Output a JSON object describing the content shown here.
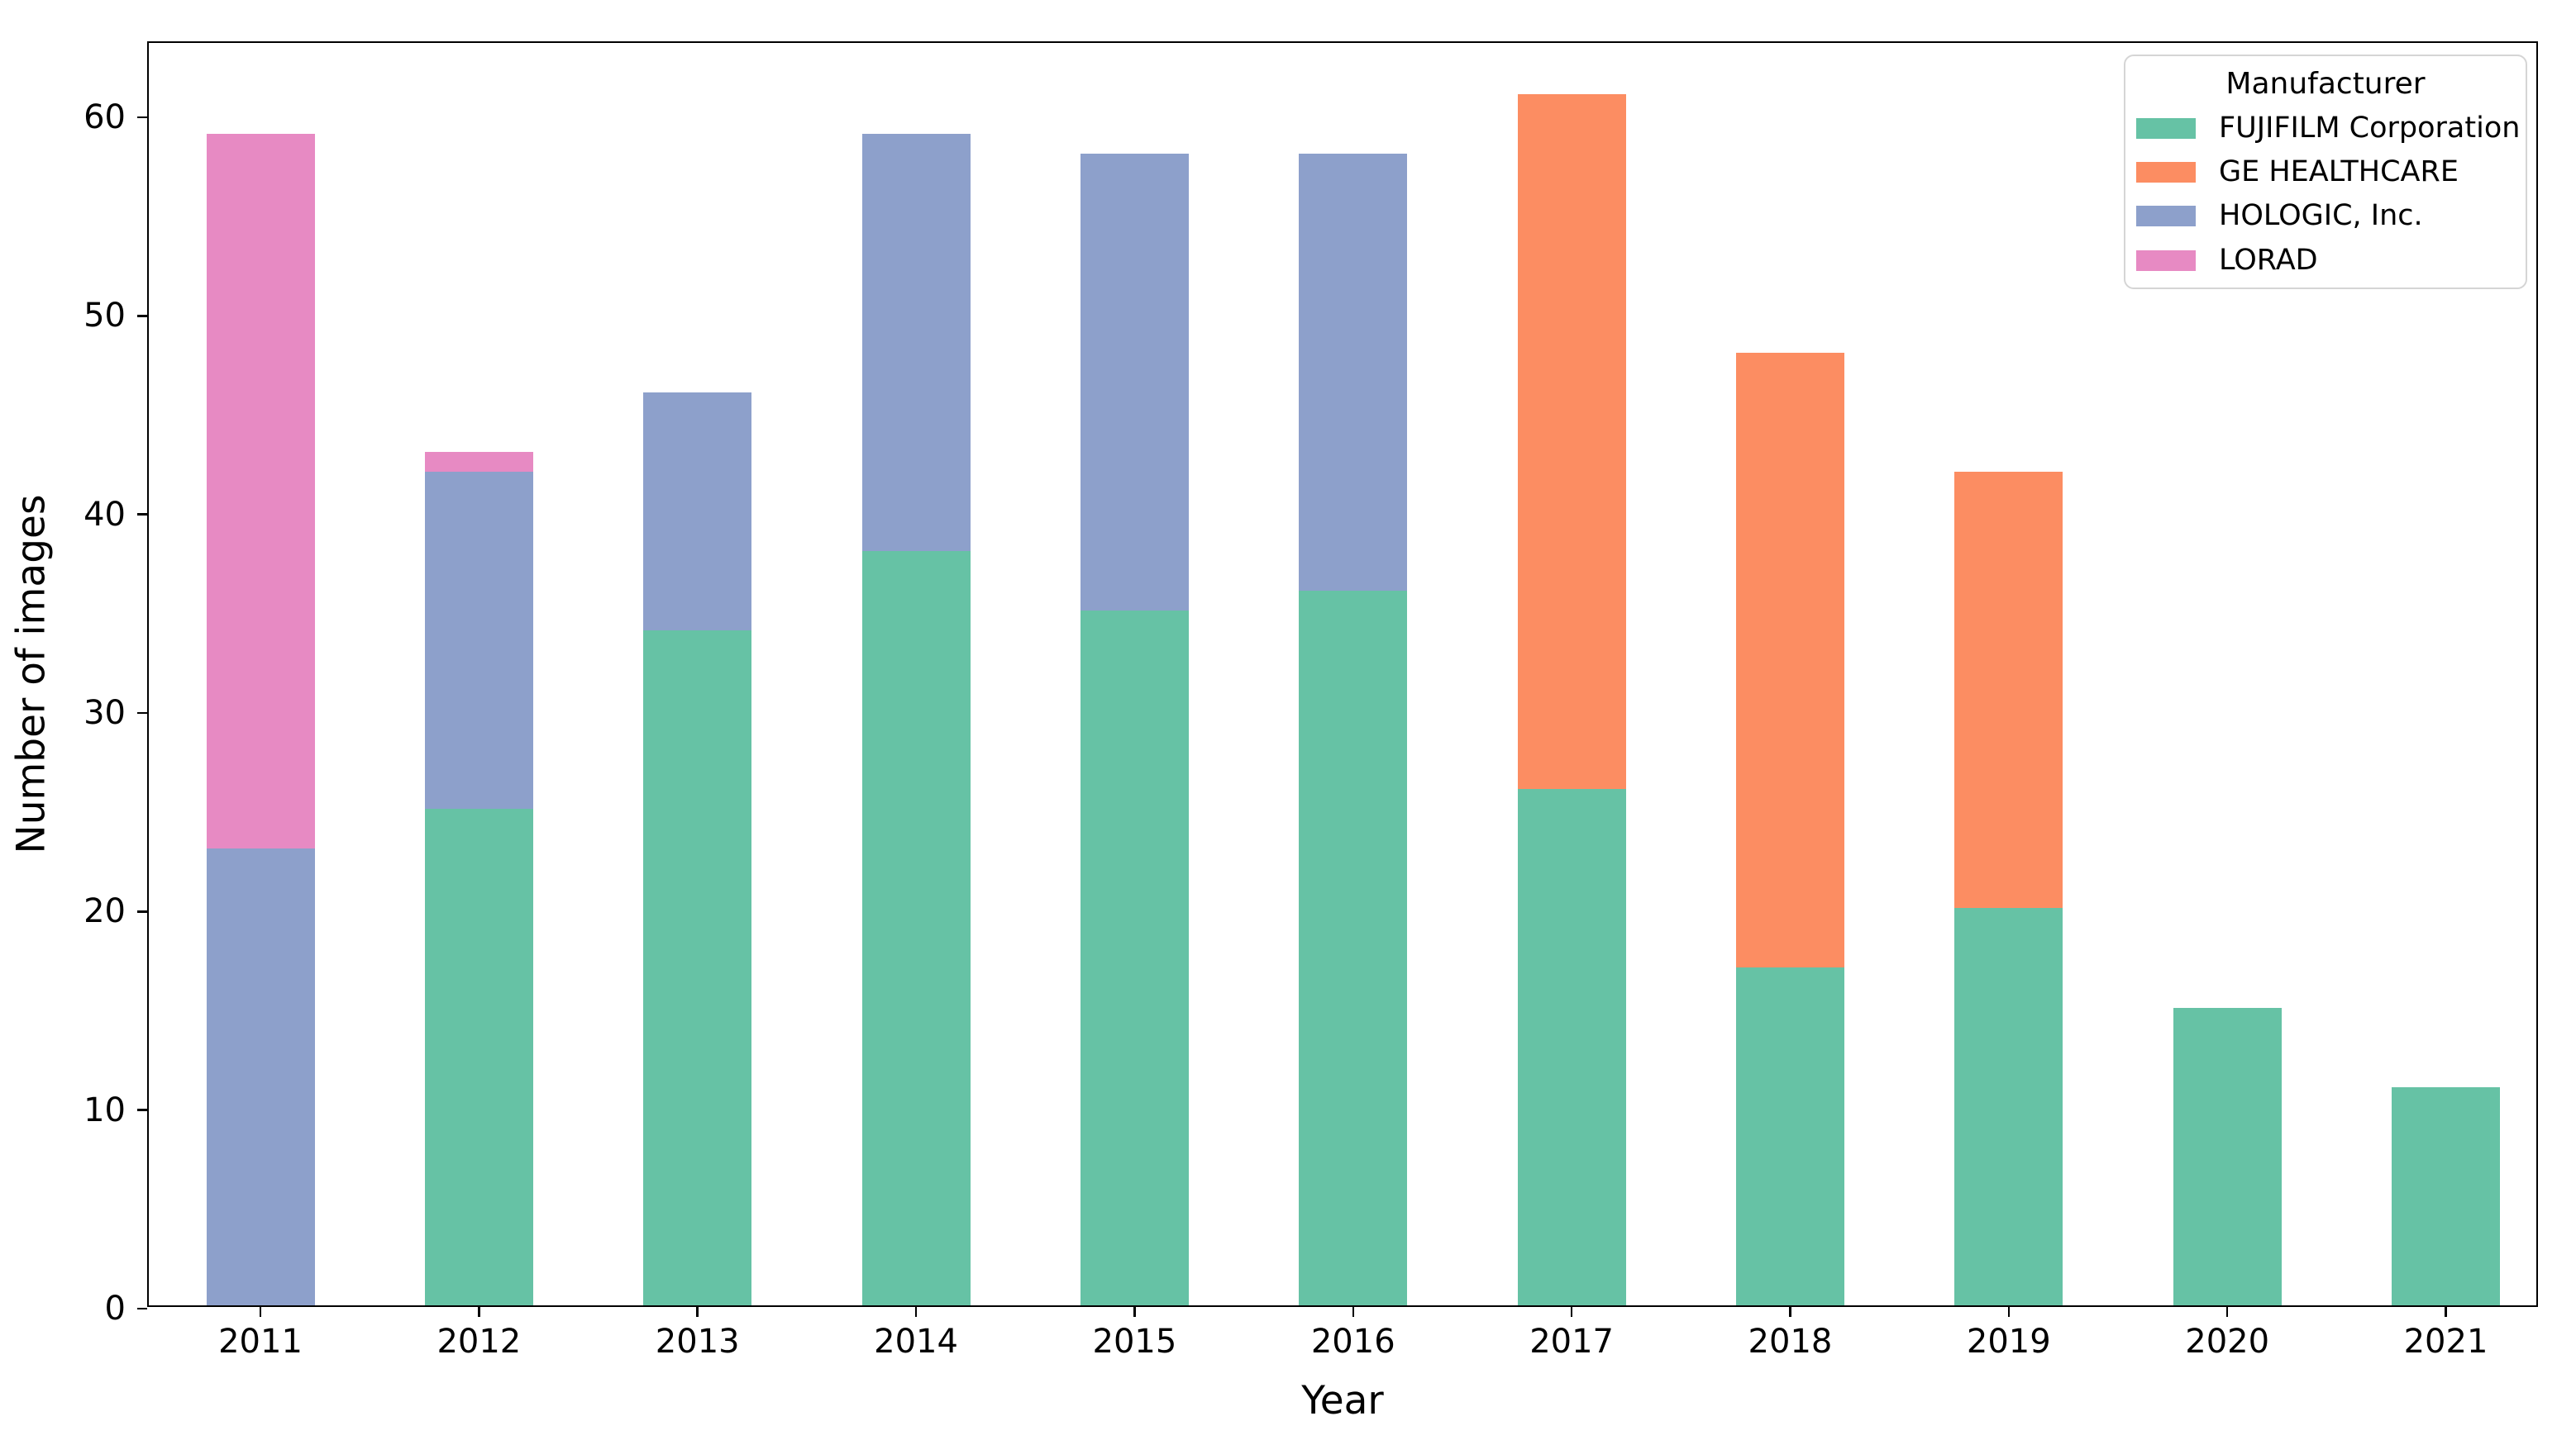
{
  "figure": {
    "background": "#ffffff"
  },
  "chart_data": {
    "type": "bar",
    "stacked": true,
    "title": "",
    "xlabel": "Year",
    "ylabel": "Number of images",
    "categories": [
      "2011",
      "2012",
      "2013",
      "2014",
      "2015",
      "2016",
      "2017",
      "2018",
      "2019",
      "2020",
      "2021"
    ],
    "series": [
      {
        "name": "FUJIFILM Corporation",
        "color": "#66c2a5",
        "values": [
          0,
          25,
          34,
          38,
          35,
          36,
          26,
          17,
          20,
          15,
          11
        ]
      },
      {
        "name": "GE HEALTHCARE",
        "color": "#fc8d62",
        "values": [
          0,
          0,
          0,
          0,
          0,
          0,
          35,
          31,
          22,
          0,
          0
        ]
      },
      {
        "name": "HOLOGIC, Inc.",
        "color": "#8da0cb",
        "values": [
          23,
          17,
          12,
          21,
          23,
          22,
          0,
          0,
          0,
          0,
          0
        ]
      },
      {
        "name": "LORAD",
        "color": "#e78ac3",
        "values": [
          36,
          1,
          0,
          0,
          0,
          0,
          0,
          0,
          0,
          0,
          0
        ]
      }
    ],
    "stack_totals": [
      59,
      43,
      46,
      59,
      58,
      58,
      61,
      48,
      42,
      15,
      11
    ],
    "yticks": [
      0,
      10,
      20,
      30,
      40,
      50,
      60
    ],
    "ylim": [
      0,
      63.75
    ],
    "grid": false,
    "legend": {
      "title": "Manufacturer",
      "position": "upper right"
    }
  }
}
